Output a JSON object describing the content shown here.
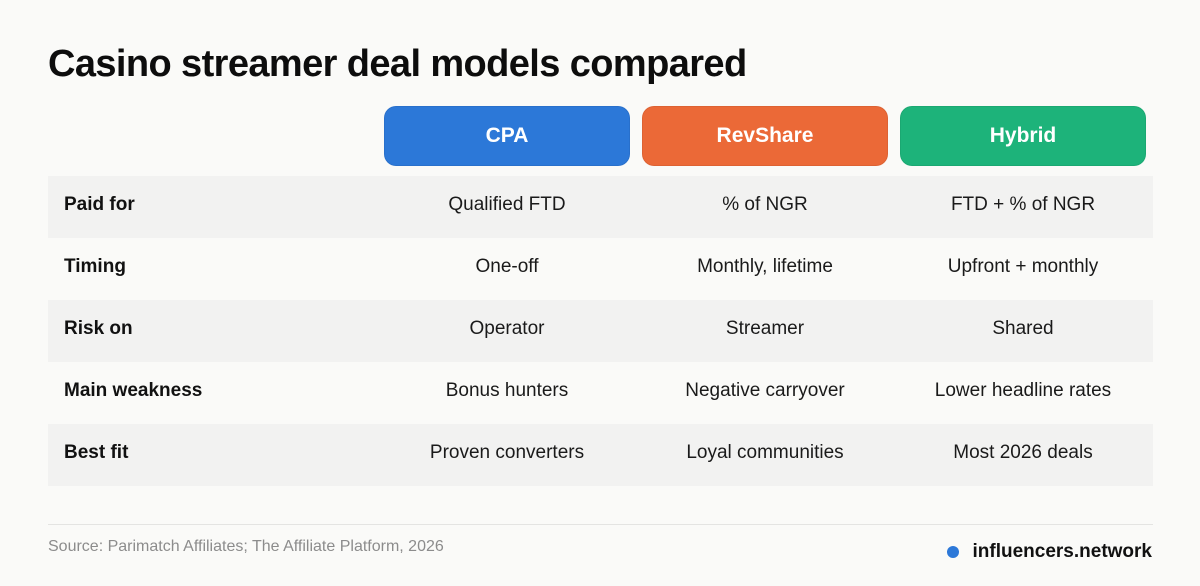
{
  "title": "Casino streamer deal models compared",
  "colors": {
    "cpa": "#2c78d8",
    "revshare": "#eb6937",
    "hybrid": "#1db37a",
    "brand_dot": "#2c78d8"
  },
  "columns": [
    {
      "label": "CPA"
    },
    {
      "label": "RevShare"
    },
    {
      "label": "Hybrid"
    }
  ],
  "rows": [
    {
      "label": "Paid for",
      "values": [
        "Qualified FTD",
        "% of NGR",
        "FTD + % of NGR"
      ]
    },
    {
      "label": "Timing",
      "values": [
        "One-off",
        "Monthly, lifetime",
        "Upfront + monthly"
      ]
    },
    {
      "label": "Risk on",
      "values": [
        "Operator",
        "Streamer",
        "Shared"
      ]
    },
    {
      "label": "Main weakness",
      "values": [
        "Bonus hunters",
        "Negative carryover",
        "Lower headline rates"
      ]
    },
    {
      "label": "Best fit",
      "values": [
        "Proven converters",
        "Loyal communities",
        "Most 2026 deals"
      ]
    }
  ],
  "footer": {
    "source": "Source: Parimatch Affiliates; The Affiliate Platform, 2026",
    "brand": "influencers.network"
  }
}
